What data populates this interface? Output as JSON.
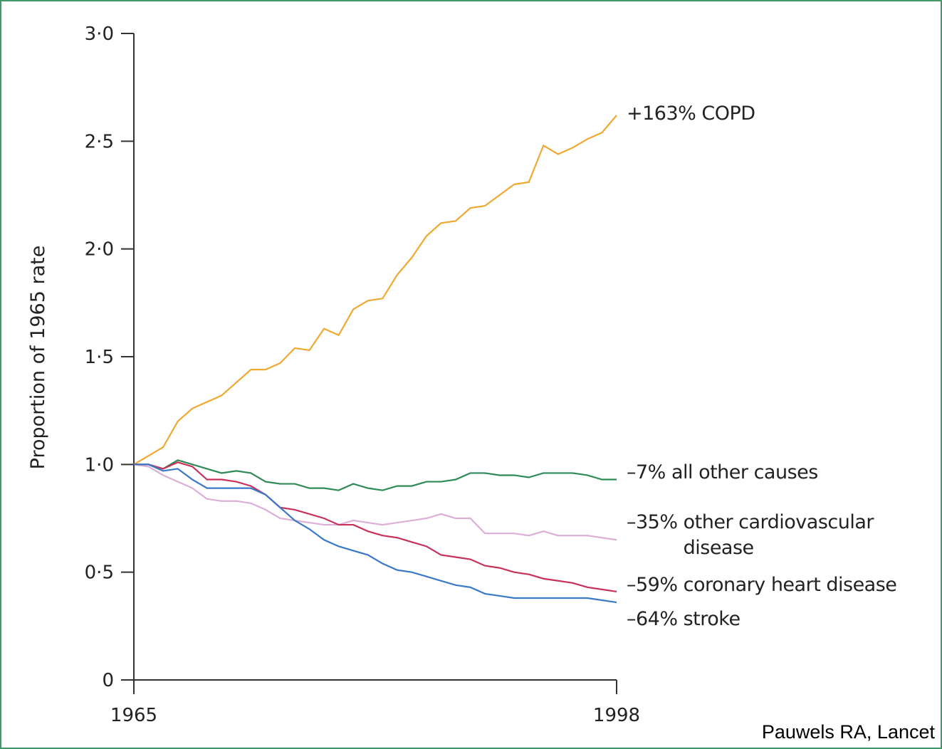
{
  "chart_data": {
    "type": "line",
    "ylabel": "Proportion of 1965 rate",
    "source": "Pauwels RA, Lancet",
    "x": [
      1965,
      1966,
      1967,
      1968,
      1969,
      1970,
      1971,
      1972,
      1973,
      1974,
      1975,
      1976,
      1977,
      1978,
      1979,
      1980,
      1981,
      1982,
      1983,
      1984,
      1985,
      1986,
      1987,
      1988,
      1989,
      1990,
      1991,
      1992,
      1993,
      1994,
      1995,
      1996,
      1997,
      1998
    ],
    "xlim": [
      1965,
      1998
    ],
    "xticks": [
      1965,
      1998
    ],
    "ylim": [
      0,
      3
    ],
    "yticks": [
      0,
      {
        "value": 0.5,
        "label": "0·5"
      },
      {
        "value": 1,
        "label": "1·0"
      },
      {
        "value": 1.5,
        "label": "1·5"
      },
      {
        "value": 2,
        "label": "2·0"
      },
      {
        "value": 2.5,
        "label": "2·5"
      },
      {
        "value": 3,
        "label": "3·0"
      }
    ],
    "grid": false,
    "series": [
      {
        "name": "COPD",
        "change": "+163%",
        "color": "#f0a830",
        "values": [
          1.0,
          1.04,
          1.08,
          1.2,
          1.26,
          1.29,
          1.32,
          1.38,
          1.44,
          1.44,
          1.47,
          1.54,
          1.53,
          1.63,
          1.6,
          1.72,
          1.76,
          1.77,
          1.88,
          1.96,
          2.06,
          2.12,
          2.13,
          2.19,
          2.2,
          2.25,
          2.3,
          2.31,
          2.48,
          2.44,
          2.47,
          2.51,
          2.54,
          2.62
        ]
      },
      {
        "name": "all other causes",
        "change": "–7%",
        "color": "#2e8b57",
        "values": [
          1.0,
          1.0,
          0.98,
          1.02,
          1.0,
          0.98,
          0.96,
          0.97,
          0.96,
          0.92,
          0.91,
          0.91,
          0.89,
          0.89,
          0.88,
          0.91,
          0.89,
          0.88,
          0.9,
          0.9,
          0.92,
          0.92,
          0.93,
          0.96,
          0.96,
          0.95,
          0.95,
          0.94,
          0.96,
          0.96,
          0.96,
          0.95,
          0.93,
          0.93
        ]
      },
      {
        "name": "other cardiovascular disease",
        "change": "–35%",
        "color": "#dcb0d6",
        "values": [
          1.0,
          0.99,
          0.95,
          0.92,
          0.89,
          0.84,
          0.83,
          0.83,
          0.82,
          0.79,
          0.75,
          0.74,
          0.73,
          0.72,
          0.72,
          0.74,
          0.73,
          0.72,
          0.73,
          0.74,
          0.75,
          0.77,
          0.75,
          0.75,
          0.68,
          0.68,
          0.68,
          0.67,
          0.69,
          0.67,
          0.67,
          0.67,
          0.66,
          0.65
        ]
      },
      {
        "name": "coronary heart disease",
        "change": "–59%",
        "color": "#c8325a",
        "values": [
          1.0,
          1.0,
          0.98,
          1.01,
          0.99,
          0.93,
          0.93,
          0.92,
          0.9,
          0.86,
          0.8,
          0.79,
          0.77,
          0.75,
          0.72,
          0.72,
          0.69,
          0.67,
          0.66,
          0.64,
          0.62,
          0.58,
          0.57,
          0.56,
          0.53,
          0.52,
          0.5,
          0.49,
          0.47,
          0.46,
          0.45,
          0.43,
          0.42,
          0.41
        ]
      },
      {
        "name": "stroke",
        "change": "–64%",
        "color": "#3a78c8",
        "values": [
          1.0,
          1.0,
          0.97,
          0.98,
          0.93,
          0.89,
          0.89,
          0.89,
          0.89,
          0.86,
          0.8,
          0.74,
          0.7,
          0.65,
          0.62,
          0.6,
          0.58,
          0.54,
          0.51,
          0.5,
          0.48,
          0.46,
          0.44,
          0.43,
          0.4,
          0.39,
          0.38,
          0.38,
          0.38,
          0.38,
          0.38,
          0.38,
          0.37,
          0.36
        ]
      }
    ]
  }
}
